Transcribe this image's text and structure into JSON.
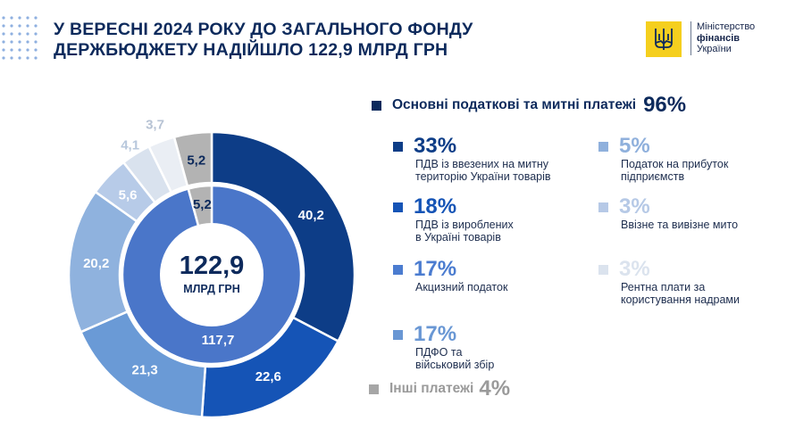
{
  "header": {
    "title_line1": "У ВЕРЕСНІ 2024 РОКУ ДО ЗАГАЛЬНОГО ФОНДУ",
    "title_line2": "ДЕРЖБЮДЖЕТУ НАДІЙШЛО 122,9 МЛРД ГРН"
  },
  "logo": {
    "line1": "Міністерство",
    "line2": "фінансів",
    "line3": "України",
    "icon": "trident-emblem-icon",
    "color": "#f5cf1e"
  },
  "center": {
    "value": "122,9",
    "unit": "МЛРД ГРН"
  },
  "legend": {
    "main_label": "Основні податкові та митні платежі",
    "main_pct": "96%",
    "main_color": "#0d2a5c",
    "other_label": "Інші платежі",
    "other_pct": "4%",
    "other_color": "#a6a6a6",
    "items": [
      {
        "pct": "33%",
        "desc1": "ПДВ із ввезених на митну",
        "desc2": "територію України товарів",
        "color": "#0d3d87"
      },
      {
        "pct": "18%",
        "desc1": "ПДВ із вироблених",
        "desc2": "в Україні товарів",
        "color": "#1554b6"
      },
      {
        "pct": "17%",
        "desc1": "Акцизний податок",
        "desc2": "",
        "color": "#4b7cd0"
      },
      {
        "pct": "17%",
        "desc1": "ПДФО та",
        "desc2": "військовий збір",
        "color": "#6997d4"
      },
      {
        "pct": "5%",
        "desc1": "Податок на прибуток",
        "desc2": "підприємств",
        "color": "#8fb0dc"
      },
      {
        "pct": "3%",
        "desc1": "Ввізне та вивізне мито",
        "desc2": "",
        "color": "#b6c9e6"
      },
      {
        "pct": "3%",
        "desc1": "Рентна плати за",
        "desc2": "користування надрами",
        "color": "#dbe3ee"
      }
    ]
  },
  "chart_data": {
    "type": "pie",
    "subtype": "nested-donut",
    "total": "122,9",
    "unit": "МЛРД ГРН",
    "inner_ring": [
      {
        "label": "Основні податкові та митні платежі",
        "value": 117.7,
        "display": "117,7",
        "color": "#4a76c9"
      },
      {
        "label": "Інші платежі",
        "value": 5.2,
        "display": "5,2",
        "color": "#b3b3b3"
      }
    ],
    "outer_ring": [
      {
        "label": "ПДВ із ввезених на митну територію України товарів",
        "value": 40.2,
        "display": "40,2",
        "color": "#0d3d87",
        "text_color": "#ffffff"
      },
      {
        "label": "ПДВ із вироблених в Україні товарів",
        "value": 22.6,
        "display": "22,6",
        "color": "#1554b6",
        "text_color": "#ffffff"
      },
      {
        "label": "Акцизний податок",
        "value": 21.3,
        "display": "21,3",
        "color": "#6a9ad6",
        "text_color": "#ffffff"
      },
      {
        "label": "ПДФО та військовий збір",
        "value": 20.2,
        "display": "20,2",
        "color": "#8fb2de",
        "text_color": "#ffffff"
      },
      {
        "label": "Податок на прибуток підприємств",
        "value": 5.6,
        "display": "5,6",
        "color": "#b7cbe8",
        "text_color": "#ffffff"
      },
      {
        "label": "Ввізне та вивізне мито",
        "value": 4.1,
        "display": "4,1",
        "color": "#d9e2ee",
        "text_color": "#b7c7dc"
      },
      {
        "label": "Рентна плати за користування надрами",
        "value": 3.7,
        "display": "3,7",
        "color": "#eaeef4",
        "text_color": "#b7c3d4"
      },
      {
        "label": "Інші платежі",
        "value": 5.2,
        "display": "5,2",
        "color": "#b3b3b3",
        "text_color": "#0d2a5c"
      }
    ]
  }
}
